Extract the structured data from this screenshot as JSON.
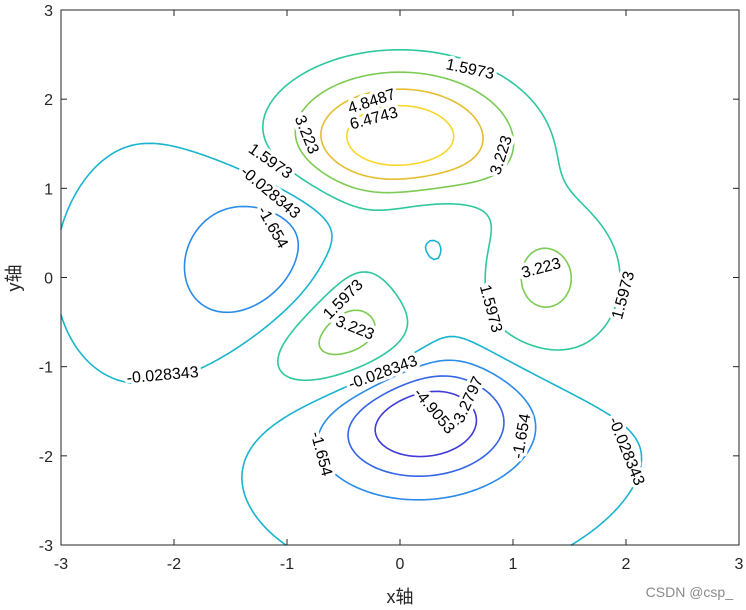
{
  "chart_data": {
    "type": "contour",
    "title": "",
    "xlabel": "x轴",
    "ylabel": "y轴",
    "xlim": [
      -3,
      3
    ],
    "ylim": [
      -3,
      3
    ],
    "xticks": [
      -3,
      -2,
      -1,
      0,
      1,
      2,
      3
    ],
    "yticks": [
      -3,
      -2,
      -1,
      0,
      1,
      2,
      3
    ],
    "grid": false,
    "function": "peaks",
    "levels": [
      -4.9053,
      -3.2797,
      -1.654,
      -0.028343,
      1.5973,
      3.223,
      4.8487,
      6.4743
    ],
    "level_colors": [
      "#3e3bd6",
      "#3465e6",
      "#2a8be8",
      "#1ab4d0",
      "#2ec7a0",
      "#7ccb53",
      "#e6bd30",
      "#fad72a"
    ],
    "labels": [
      {
        "text": "1.5973",
        "x": 0.62,
        "y": 2.33,
        "angle": 12
      },
      {
        "text": "4.8487",
        "x": -0.25,
        "y": 1.97,
        "angle": -18
      },
      {
        "text": "6.4743",
        "x": -0.23,
        "y": 1.78,
        "angle": -15
      },
      {
        "text": "3.223",
        "x": -0.83,
        "y": 1.6,
        "angle": 68
      },
      {
        "text": "3.223",
        "x": 0.9,
        "y": 1.37,
        "angle": -72
      },
      {
        "text": "1.5973",
        "x": -1.15,
        "y": 1.3,
        "angle": 35
      },
      {
        "text": "-0.028343",
        "x": -1.15,
        "y": 0.95,
        "angle": 40
      },
      {
        "text": "-1.654",
        "x": -1.13,
        "y": 0.56,
        "angle": 60
      },
      {
        "text": "3.223",
        "x": 1.25,
        "y": 0.1,
        "angle": -15
      },
      {
        "text": "1.5973",
        "x": 1.98,
        "y": -0.2,
        "angle": -75
      },
      {
        "text": "1.5973",
        "x": 0.8,
        "y": -0.35,
        "angle": 75
      },
      {
        "text": "1.5973",
        "x": -0.5,
        "y": -0.25,
        "angle": -45
      },
      {
        "text": "3.223",
        "x": -0.4,
        "y": -0.57,
        "angle": 22
      },
      {
        "text": "-0.028343",
        "x": -2.1,
        "y": -1.1,
        "angle": -5
      },
      {
        "text": "-0.028343",
        "x": -0.15,
        "y": -1.07,
        "angle": -20
      },
      {
        "text": "-3.2797",
        "x": 0.6,
        "y": -1.4,
        "angle": -65
      },
      {
        "text": "-4.9053",
        "x": 0.3,
        "y": -1.5,
        "angle": 50
      },
      {
        "text": "-1.654",
        "x": 1.08,
        "y": -1.78,
        "angle": -80
      },
      {
        "text": "-1.654",
        "x": -0.7,
        "y": -1.98,
        "angle": 75
      },
      {
        "text": "-0.028343",
        "x": 2.0,
        "y": -1.95,
        "angle": 68
      }
    ]
  },
  "watermark": "CSDN @csp_"
}
